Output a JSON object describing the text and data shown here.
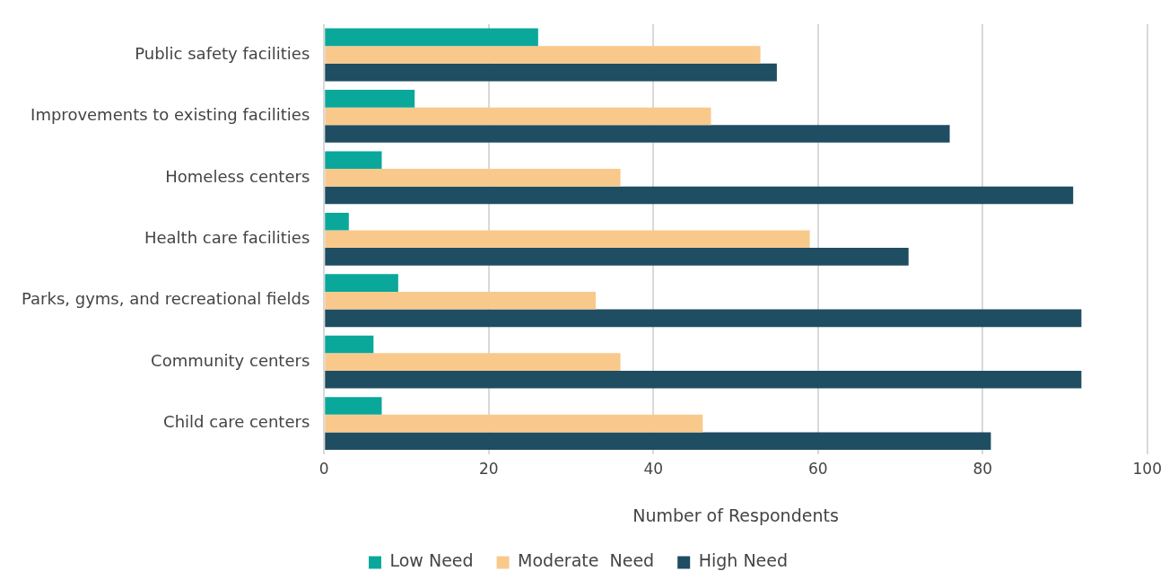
{
  "chart_data": {
    "type": "bar",
    "orientation": "horizontal",
    "xlabel": "Number of Respondents",
    "categories": [
      "Public safety facilities",
      "Improvements to existing facilities",
      "Homeless centers",
      "Health care facilities",
      "Parks, gyms, and recreational fields",
      "Community centers",
      "Child care centers"
    ],
    "series": [
      {
        "name": "Low Need",
        "color": "#0aa89b",
        "values": [
          26,
          11,
          7,
          3,
          9,
          6,
          7
        ]
      },
      {
        "name": "Moderate  Need",
        "color": "#f9c98c",
        "values": [
          53,
          47,
          36,
          59,
          33,
          36,
          46
        ]
      },
      {
        "name": "High Need",
        "color": "#1f4d62",
        "values": [
          55,
          76,
          91,
          71,
          92,
          92,
          81
        ]
      }
    ],
    "xlim": [
      0,
      100
    ],
    "xticks": [
      0,
      20,
      40,
      60,
      80,
      100
    ],
    "grid": "x",
    "legend": "bottom"
  }
}
